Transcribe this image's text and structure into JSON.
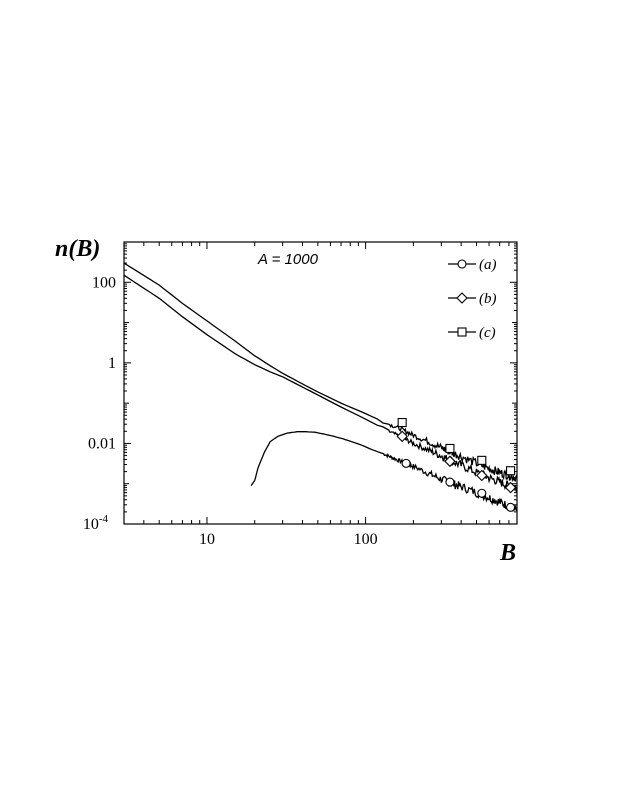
{
  "chart_data": {
    "type": "line",
    "title": "",
    "xlabel": "B",
    "ylabel": "n(B)",
    "xscale": "log",
    "yscale": "log",
    "xlim": [
      3,
      900
    ],
    "ylim": [
      0.0001,
      1000
    ],
    "grid": false,
    "legend_position": "top-right",
    "x_ticks": [
      {
        "value": 10,
        "label": "10"
      },
      {
        "value": 100,
        "label": "100"
      }
    ],
    "y_ticks": [
      {
        "value": 100,
        "label": "100"
      },
      {
        "value": 1,
        "label": "1"
      },
      {
        "value": 0.01,
        "label": "0.01"
      },
      {
        "value": 0.0001,
        "label": "10-4",
        "base": "10",
        "exp": "-4"
      }
    ],
    "annotation": "A = 1000",
    "series": [
      {
        "name": "(a)",
        "marker": "circle",
        "x": [
          19,
          20,
          21,
          23,
          25,
          28,
          32,
          37,
          42,
          48,
          55,
          63,
          72,
          82,
          95,
          110,
          130,
          150,
          175,
          200,
          250,
          300,
          350,
          400,
          500,
          600,
          700,
          800,
          900
        ],
        "y": [
          0.0009,
          0.0012,
          0.0025,
          0.006,
          0.011,
          0.015,
          0.018,
          0.0195,
          0.0195,
          0.019,
          0.017,
          0.015,
          0.013,
          0.011,
          0.009,
          0.007,
          0.0055,
          0.0043,
          0.0033,
          0.0027,
          0.0018,
          0.0013,
          0.001,
          0.00085,
          0.0006,
          0.00045,
          0.00035,
          0.00028,
          0.00022
        ],
        "marker_x": [
          180,
          340,
          540,
          820
        ],
        "marker_y": [
          0.0032,
          0.0011,
          0.00058,
          0.00026
        ]
      },
      {
        "name": "(b)",
        "marker": "diamond",
        "x": [
          3,
          5,
          7,
          10,
          15,
          20,
          25,
          30,
          40,
          50,
          70,
          100,
          140,
          170,
          200,
          250,
          300,
          340,
          400,
          500,
          600,
          700,
          800,
          900
        ],
        "y": [
          150,
          40,
          14,
          5,
          1.7,
          0.9,
          0.6,
          0.45,
          0.25,
          0.16,
          0.08,
          0.04,
          0.02,
          0.014,
          0.01,
          0.0068,
          0.0049,
          0.0038,
          0.0029,
          0.0019,
          0.0014,
          0.0011,
          0.0009,
          0.00075
        ],
        "marker_x": [
          170,
          340,
          540,
          820
        ],
        "marker_y": [
          0.015,
          0.0036,
          0.0016,
          0.0008
        ]
      },
      {
        "name": "(c)",
        "marker": "square",
        "x": [
          3,
          5,
          7,
          10,
          15,
          20,
          25,
          30,
          40,
          50,
          70,
          100,
          140,
          170,
          200,
          250,
          300,
          340,
          400,
          500,
          600,
          700,
          800,
          900
        ],
        "y": [
          300,
          85,
          30,
          11,
          3.5,
          1.5,
          0.85,
          0.55,
          0.3,
          0.19,
          0.1,
          0.055,
          0.03,
          0.022,
          0.016,
          0.011,
          0.0078,
          0.0062,
          0.0048,
          0.0032,
          0.0024,
          0.0019,
          0.0016,
          0.0014
        ],
        "marker_x": [
          170,
          340,
          540,
          820
        ],
        "marker_y": [
          0.033,
          0.0075,
          0.0038,
          0.0021
        ]
      }
    ]
  }
}
